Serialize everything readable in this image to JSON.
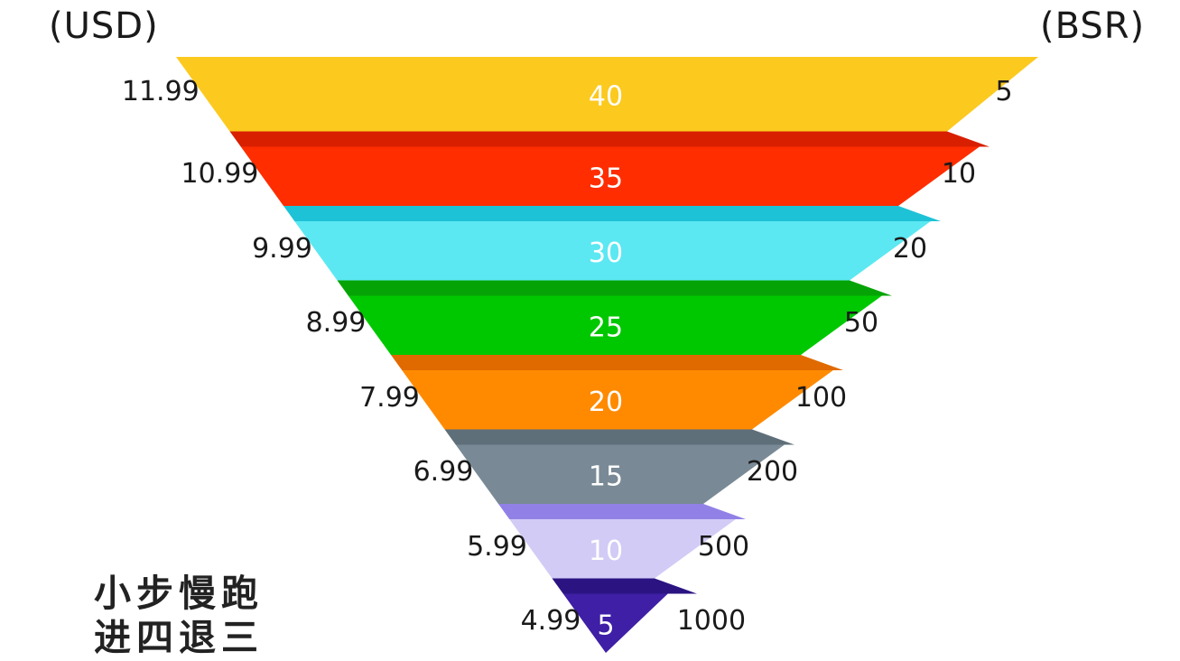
{
  "chart_data": {
    "type": "funnel",
    "left_axis_label": "(USD)",
    "right_axis_label": "(BSR)",
    "layers": [
      {
        "price": "11.99",
        "value": "40",
        "bsr": "5",
        "color": "#FCC91F",
        "top_color": "#E8B50F"
      },
      {
        "price": "10.99",
        "value": "35",
        "bsr": "10",
        "color": "#FF2D00",
        "top_color": "#D81F00"
      },
      {
        "price": "9.99",
        "value": "30",
        "bsr": "20",
        "color": "#5BE8F2",
        "top_color": "#1EC2D6"
      },
      {
        "price": "8.99",
        "value": "25",
        "bsr": "50",
        "color": "#00C800",
        "top_color": "#06A306"
      },
      {
        "price": "7.99",
        "value": "20",
        "bsr": "100",
        "color": "#FF8A00",
        "top_color": "#E06A00"
      },
      {
        "price": "6.99",
        "value": "15",
        "bsr": "200",
        "color": "#798A96",
        "top_color": "#5F6F7A"
      },
      {
        "price": "5.99",
        "value": "10",
        "bsr": "500",
        "color": "#D2CBF6",
        "top_color": "#9181E6"
      },
      {
        "price": "4.99",
        "value": "5",
        "bsr": "1000",
        "color": "#3E1FA5",
        "top_color": "#2B1482"
      }
    ]
  },
  "caption": {
    "line1": "小步慢跑",
    "line2": "进四退三"
  }
}
